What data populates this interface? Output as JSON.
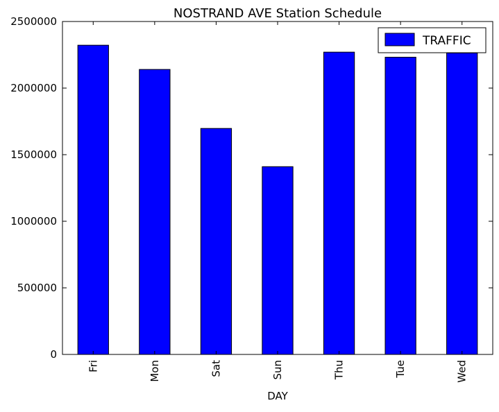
{
  "chart_data": {
    "type": "bar",
    "title": "NOSTRAND AVE Station Schedule",
    "xlabel": "DAY",
    "ylabel": "",
    "categories": [
      "Fri",
      "Mon",
      "Sat",
      "Sun",
      "Thu",
      "Tue",
      "Wed"
    ],
    "series": [
      {
        "name": "TRAFFIC",
        "color": "#0000ff",
        "values": [
          2322000,
          2140000,
          1697000,
          1410000,
          2270000,
          2232000,
          2264000
        ]
      }
    ],
    "ylim": [
      0,
      2500000
    ],
    "yticks": [
      0,
      500000,
      1000000,
      1500000,
      2000000,
      2500000
    ],
    "ytick_labels": [
      "0",
      "500000",
      "1000000",
      "1500000",
      "2000000",
      "2500000"
    ],
    "legend_position": "top-right",
    "grid": false
  }
}
